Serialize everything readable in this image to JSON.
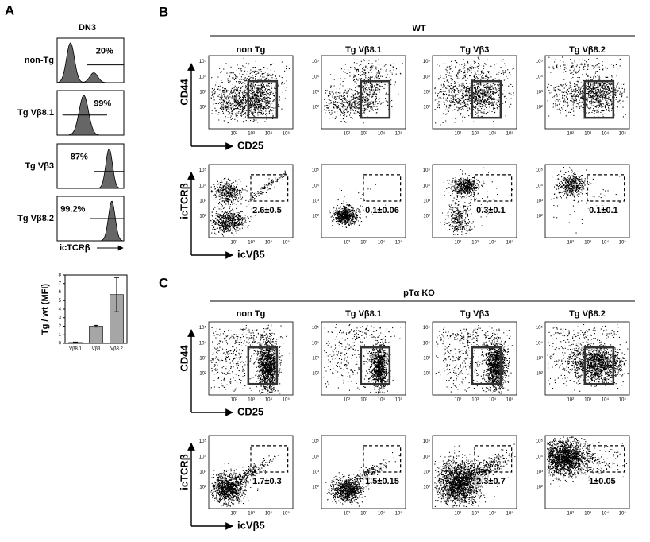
{
  "log_ticks": [
    "10²",
    "10³",
    "10⁴",
    "10⁵"
  ],
  "panel_a": {
    "label": "A",
    "title": "DN3",
    "rows": [
      {
        "label": "non-Tg",
        "percent": "20%"
      },
      {
        "label": "Tg Vβ8.1",
        "percent": "99%"
      },
      {
        "label": "Tg Vβ3",
        "percent": "87%"
      },
      {
        "label": "Tg Vβ8.2",
        "percent": "99.2%"
      }
    ],
    "x_label": "icTCRβ"
  },
  "chart_data": {
    "type": "bar",
    "y_label": "Tg / wt (MFI)",
    "categories": [
      "Vβ8.1",
      "Vβ3",
      "Vβ8.2"
    ],
    "values": [
      0.1,
      2,
      5.7
    ],
    "errors": [
      0.05,
      0.1,
      2
    ],
    "color": "#a6a6a6",
    "ylim": [
      0,
      8
    ],
    "yticks": [
      0,
      1,
      2,
      3,
      4,
      5,
      6,
      7,
      8
    ]
  },
  "panel_b": {
    "label": "B",
    "group": "WT",
    "columns": [
      "non Tg",
      "Tg Vβ8.1",
      "Tg Vβ3",
      "Tg Vβ8.2"
    ],
    "top_y_label": "CD44",
    "top_x_label": "CD25",
    "bottom_y_label": "icTCRβ",
    "bottom_x_label": "icVβ5",
    "gate_values": [
      "2.6±0.5",
      "0.1±0.06",
      "0.3±0.1",
      "0.1±0.1"
    ]
  },
  "panel_c": {
    "label": "C",
    "group": "pTα KO",
    "columns": [
      "non Tg",
      "Tg Vβ8.1",
      "Tg Vβ3",
      "Tg Vβ8.2"
    ],
    "top_y_label": "CD44",
    "top_x_label": "CD25",
    "bottom_y_label": "icTCRβ",
    "bottom_x_label": "icVβ5",
    "gate_values": [
      "1.7±0.3",
      "1.5±0.15",
      "2.3±0.7",
      "1±0.05"
    ]
  }
}
